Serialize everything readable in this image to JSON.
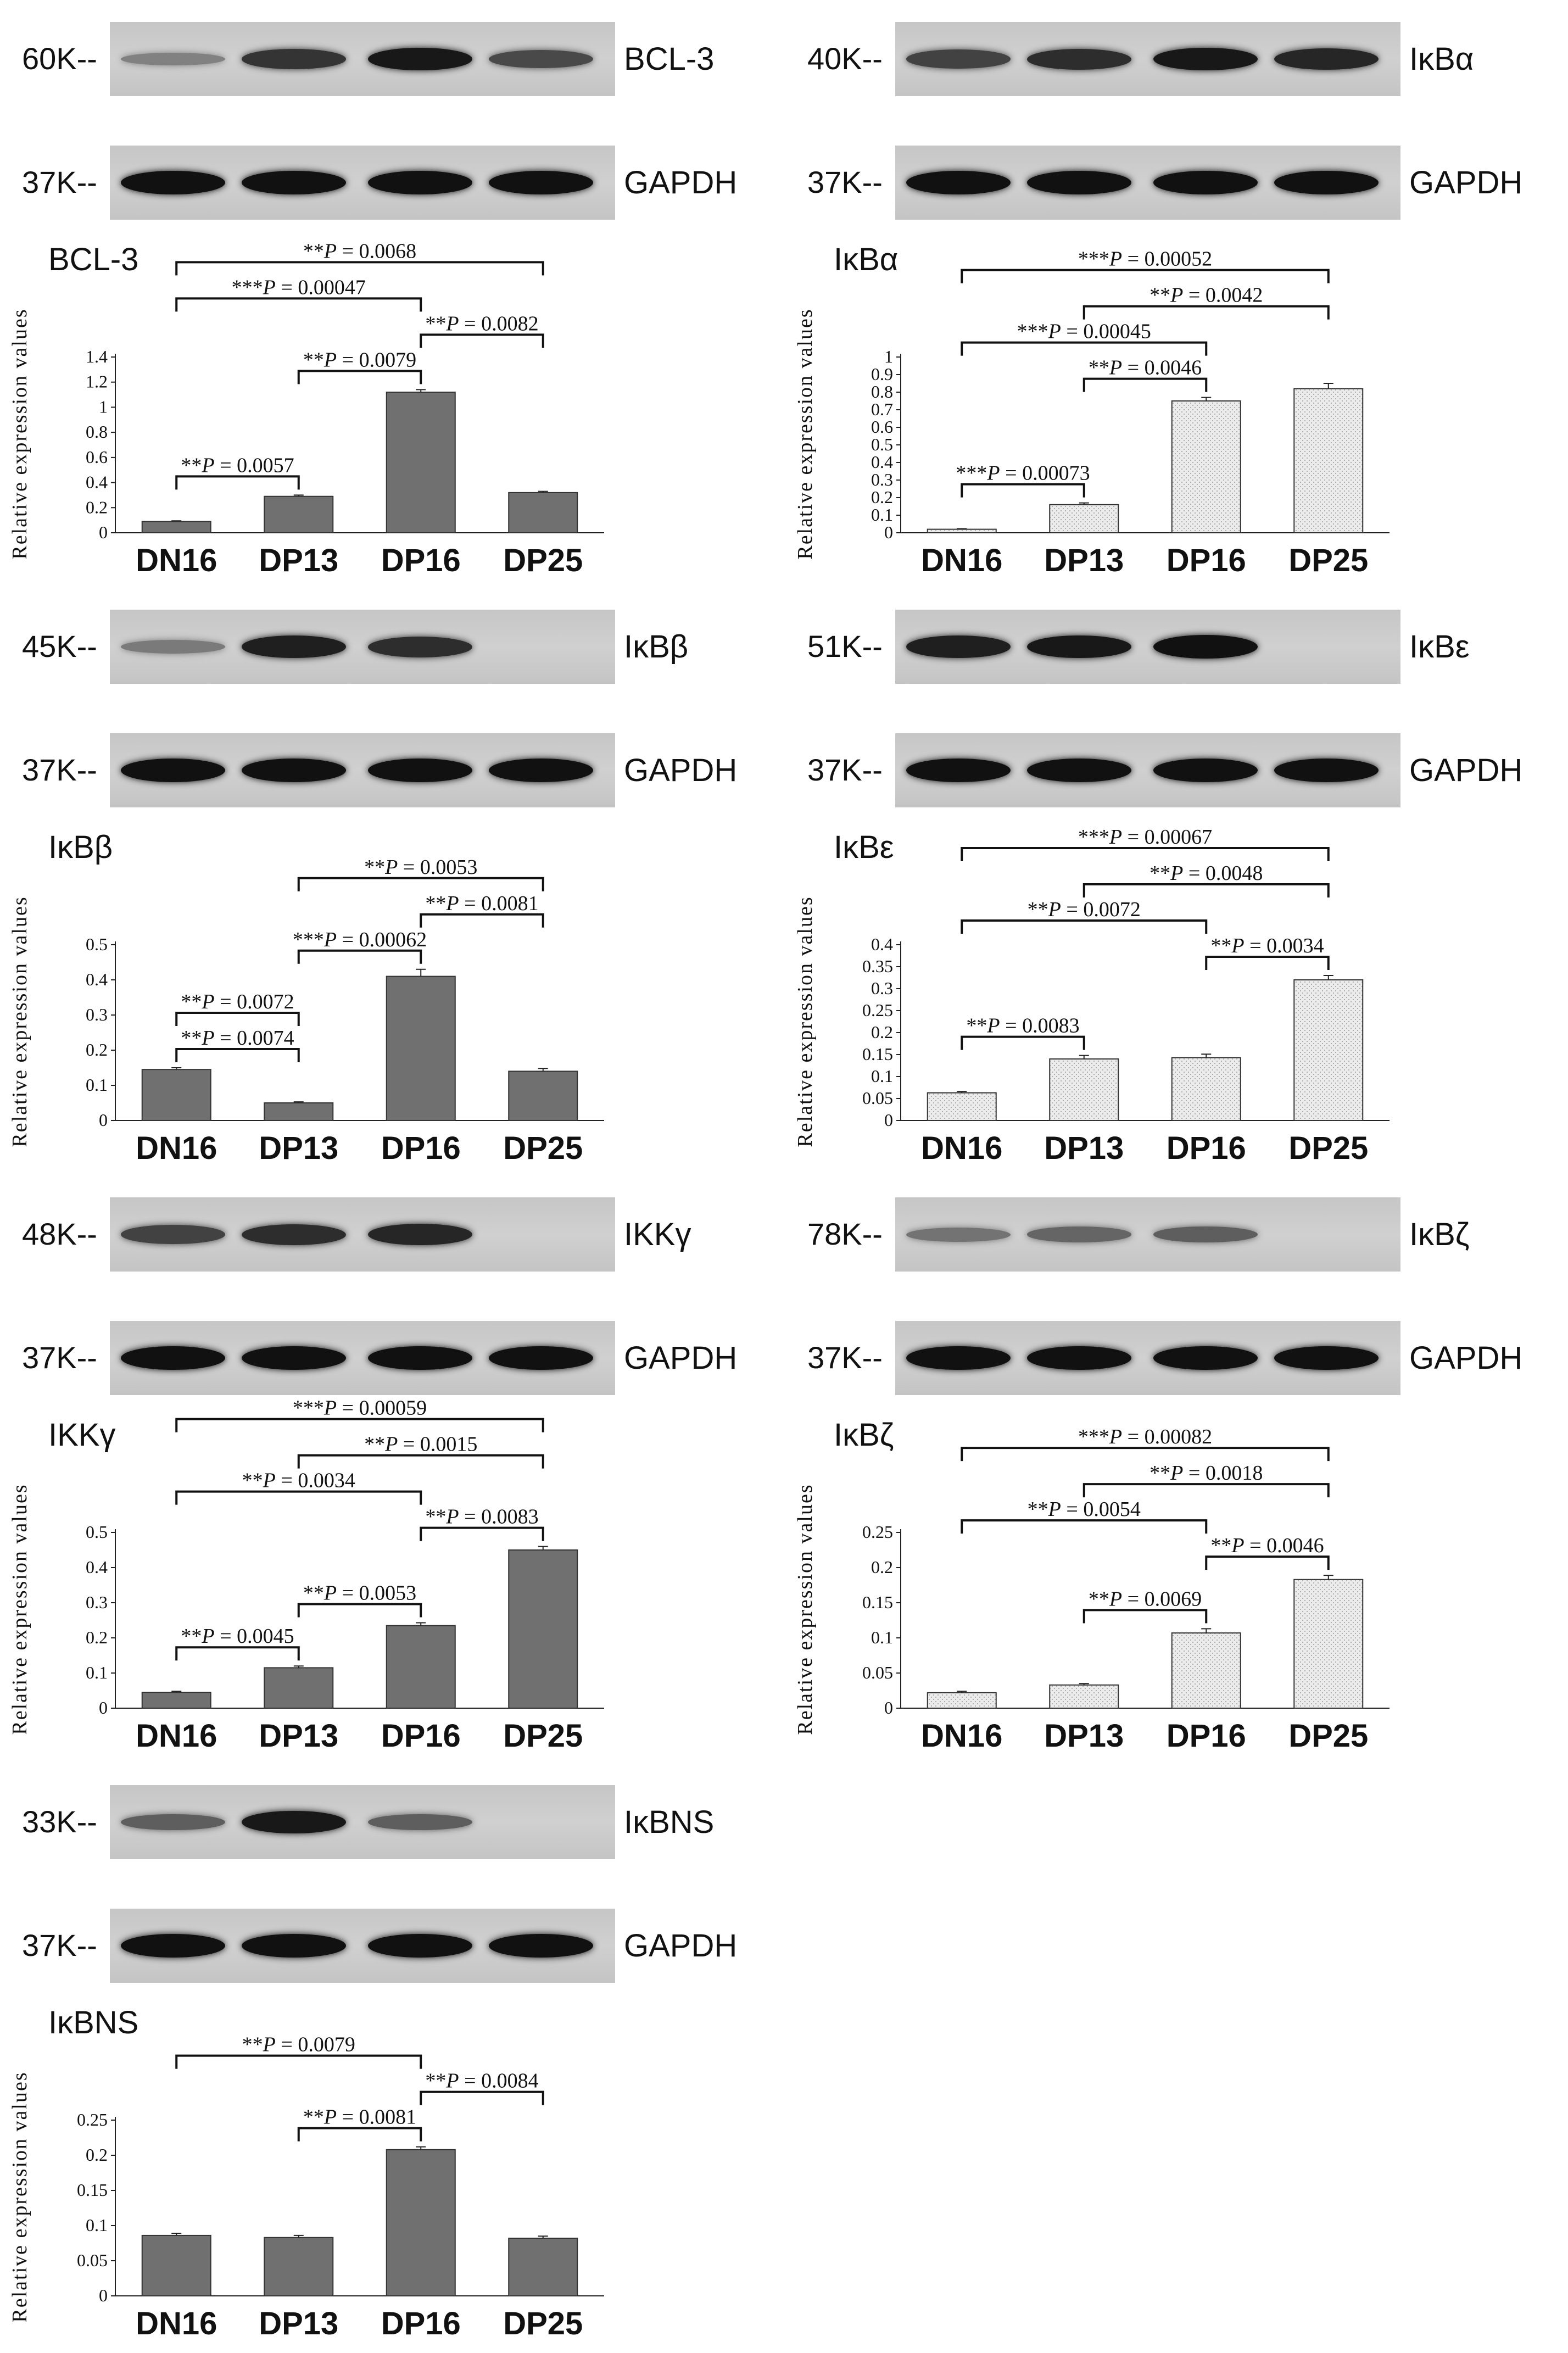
{
  "categories": [
    "DN16",
    "DP13",
    "DP16",
    "DP25"
  ],
  "ylabel": "Relative expression values",
  "panels": [
    {
      "id": "bcl3",
      "blot": {
        "mw": "60K--",
        "label": "BCL-3",
        "intensity": [
          0.55,
          0.15,
          0.7,
          0.9,
          0.55
        ]
      },
      "gapdh": {
        "mw": "37K--",
        "label": "GAPDH"
      },
      "chart_data": {
        "type": "bar",
        "title": "BCL-3",
        "ylabel": "Relative expression values",
        "categories": [
          "DN16",
          "DP13",
          "DP16",
          "DP25"
        ],
        "values": [
          0.09,
          0.29,
          1.12,
          0.32
        ],
        "errors": [
          0.005,
          0.01,
          0.02,
          0.01
        ],
        "ylim": [
          0,
          1.4
        ],
        "yticks": [
          "0",
          "0.2",
          "0.4",
          "0.6",
          "0.8",
          "1",
          "1.2",
          "1.4"
        ],
        "ytick_values": [
          0,
          0.2,
          0.4,
          0.6,
          0.8,
          1,
          1.2,
          1.4
        ],
        "bar_color": "#707070",
        "bar_pattern": "solid",
        "significance": [
          {
            "stars": "**",
            "p": "0.0068",
            "from": 0,
            "to": 3
          },
          {
            "stars": "***",
            "p": "0.00047",
            "from": 0,
            "to": 2
          },
          {
            "stars": "**",
            "p": "0.0079",
            "from": 1,
            "to": 2
          },
          {
            "stars": "**",
            "p": "0.0082",
            "from": 2,
            "to": 3
          },
          {
            "stars": "**",
            "p": "0.0057",
            "from": 0,
            "to": 1
          }
        ]
      }
    },
    {
      "id": "ikba",
      "blot": {
        "mw": "40K--",
        "label": "IκBα",
        "intensity": [
          0.0,
          0.6,
          0.75,
          0.9,
          0.8
        ]
      },
      "gapdh": {
        "mw": "37K--",
        "label": "GAPDH"
      },
      "chart_data": {
        "type": "bar",
        "title": "IκBα",
        "ylabel": "Relative expression values",
        "categories": [
          "DN16",
          "DP13",
          "DP16",
          "DP25"
        ],
        "values": [
          0.02,
          0.16,
          0.75,
          0.82
        ],
        "errors": [
          0.003,
          0.01,
          0.02,
          0.03
        ],
        "ylim": [
          0,
          1
        ],
        "yticks": [
          "0",
          "0.1",
          "0.2",
          "0.3",
          "0.4",
          "0.5",
          "0.6",
          "0.7",
          "0.8",
          "0.9",
          "1"
        ],
        "ytick_values": [
          0,
          0.1,
          0.2,
          0.3,
          0.4,
          0.5,
          0.6,
          0.7,
          0.8,
          0.9,
          1
        ],
        "bar_color": "#e6e6e6",
        "bar_pattern": "dotted",
        "significance": [
          {
            "stars": "***",
            "p": "0.00052",
            "from": 0,
            "to": 3
          },
          {
            "stars": "**",
            "p": "0.0042",
            "from": 1,
            "to": 3
          },
          {
            "stars": "***",
            "p": "0.00045",
            "from": 0,
            "to": 2
          },
          {
            "stars": "**",
            "p": "0.0046",
            "from": 1,
            "to": 2
          },
          {
            "stars": "***",
            "p": "0.00073",
            "from": 0,
            "to": 1
          }
        ]
      }
    },
    {
      "id": "ikbb",
      "blot": {
        "mw": "45K--",
        "label": "IκBβ",
        "intensity": [
          0.7,
          0.2,
          0.85,
          0.75,
          0.0
        ]
      },
      "gapdh": {
        "mw": "37K--",
        "label": "GAPDH"
      },
      "chart_data": {
        "type": "bar",
        "title": "IκBβ",
        "ylabel": "Relative expression values",
        "categories": [
          "DN16",
          "DP13",
          "DP16",
          "DP25"
        ],
        "values": [
          0.145,
          0.05,
          0.41,
          0.14
        ],
        "errors": [
          0.005,
          0.003,
          0.02,
          0.008
        ],
        "ylim": [
          0,
          0.5
        ],
        "yticks": [
          "0",
          "0.1",
          "0.2",
          "0.3",
          "0.4",
          "0.5"
        ],
        "ytick_values": [
          0,
          0.1,
          0.2,
          0.3,
          0.4,
          0.5
        ],
        "bar_color": "#707070",
        "bar_pattern": "solid",
        "significance": [
          {
            "stars": "**",
            "p": "0.0053",
            "from": 1,
            "to": 3
          },
          {
            "stars": "**",
            "p": "0.0074",
            "from": 0,
            "to": 1
          },
          {
            "stars": "***",
            "p": "0.00062",
            "from": 1,
            "to": 2
          },
          {
            "stars": "**",
            "p": "0.0081",
            "from": 2,
            "to": 3
          },
          {
            "stars": "**",
            "p": "0.0072",
            "from": 0,
            "to": 1
          }
        ]
      }
    },
    {
      "id": "ikbe",
      "blot": {
        "mw": "51K--",
        "label": "IκBε",
        "intensity": [
          0.45,
          0.85,
          0.9,
          0.95,
          0.0
        ]
      },
      "gapdh": {
        "mw": "37K--",
        "label": "GAPDH"
      },
      "chart_data": {
        "type": "bar",
        "title": "IκBε",
        "ylabel": "Relative expression values",
        "categories": [
          "DN16",
          "DP13",
          "DP16",
          "DP25"
        ],
        "values": [
          0.063,
          0.14,
          0.143,
          0.32
        ],
        "errors": [
          0.003,
          0.008,
          0.008,
          0.01
        ],
        "ylim": [
          0,
          0.4
        ],
        "yticks": [
          "0",
          "0.05",
          "0.1",
          "0.15",
          "0.2",
          "0.25",
          "0.3",
          "0.35",
          "0.4"
        ],
        "ytick_values": [
          0,
          0.05,
          0.1,
          0.15,
          0.2,
          0.25,
          0.3,
          0.35,
          0.4
        ],
        "bar_color": "#e6e6e6",
        "bar_pattern": "dotted",
        "significance": [
          {
            "stars": "***",
            "p": "0.00067",
            "from": 0,
            "to": 3
          },
          {
            "stars": "**",
            "p": "0.0048",
            "from": 1,
            "to": 3
          },
          {
            "stars": "**",
            "p": "0.0034",
            "from": 2,
            "to": 3
          },
          {
            "stars": "**",
            "p": "0.0072",
            "from": 0,
            "to": 2
          },
          {
            "stars": "**",
            "p": "0.0083",
            "from": 0,
            "to": 1
          }
        ]
      }
    },
    {
      "id": "ikkg",
      "blot": {
        "mw": "48K--",
        "label": "IKKγ",
        "intensity": [
          0.2,
          0.6,
          0.75,
          0.8,
          0.0
        ]
      },
      "gapdh": {
        "mw": "37K--",
        "label": "GAPDH"
      },
      "chart_data": {
        "type": "bar",
        "title": "IKKγ",
        "ylabel": "Relative expression values",
        "categories": [
          "DN16",
          "DP13",
          "DP16",
          "DP25"
        ],
        "values": [
          0.045,
          0.115,
          0.235,
          0.45
        ],
        "errors": [
          0.003,
          0.005,
          0.008,
          0.01
        ],
        "ylim": [
          0,
          0.5
        ],
        "yticks": [
          "0",
          "0.1",
          "0.2",
          "0.3",
          "0.4",
          "0.5"
        ],
        "ytick_values": [
          0,
          0.1,
          0.2,
          0.3,
          0.4,
          0.5
        ],
        "bar_color": "#707070",
        "bar_pattern": "solid",
        "significance": [
          {
            "stars": "***",
            "p": "0.00059",
            "from": 0,
            "to": 3
          },
          {
            "stars": "**",
            "p": "0.0015",
            "from": 1,
            "to": 3
          },
          {
            "stars": "**",
            "p": "0.0083",
            "from": 2,
            "to": 3
          },
          {
            "stars": "**",
            "p": "0.0034",
            "from": 0,
            "to": 2
          },
          {
            "stars": "**",
            "p": "0.0053",
            "from": 1,
            "to": 2
          },
          {
            "stars": "**",
            "p": "0.0045",
            "from": 0,
            "to": 1
          }
        ]
      }
    },
    {
      "id": "ikbz",
      "blot": {
        "mw": "78K--",
        "label": "IκBζ",
        "intensity": [
          0.0,
          0.25,
          0.35,
          0.4,
          0.0
        ]
      },
      "gapdh": {
        "mw": "37K--",
        "label": "GAPDH"
      },
      "chart_data": {
        "type": "bar",
        "title": "IκBζ",
        "ylabel": "Relative expression values",
        "categories": [
          "DN16",
          "DP13",
          "DP16",
          "DP25"
        ],
        "values": [
          0.022,
          0.033,
          0.107,
          0.183
        ],
        "errors": [
          0.002,
          0.002,
          0.006,
          0.006
        ],
        "ylim": [
          0,
          0.25
        ],
        "yticks": [
          "0",
          "0.05",
          "0.1",
          "0.15",
          "0.2",
          "0.25"
        ],
        "ytick_values": [
          0,
          0.05,
          0.1,
          0.15,
          0.2,
          0.25
        ],
        "bar_color": "#e6e6e6",
        "bar_pattern": "dotted",
        "significance": [
          {
            "stars": "***",
            "p": "0.00082",
            "from": 0,
            "to": 3
          },
          {
            "stars": "**",
            "p": "0.0018",
            "from": 1,
            "to": 3
          },
          {
            "stars": "**",
            "p": "0.0046",
            "from": 2,
            "to": 3
          },
          {
            "stars": "**",
            "p": "0.0054",
            "from": 0,
            "to": 2
          },
          {
            "stars": "**",
            "p": "0.0069",
            "from": 1,
            "to": 2
          }
        ]
      }
    },
    {
      "id": "ikbns",
      "blot": {
        "mw": "33K--",
        "label": "IκBNS",
        "intensity": [
          0.6,
          0.4,
          0.9,
          0.4,
          0.0
        ]
      },
      "gapdh": {
        "mw": "37K--",
        "label": "GAPDH"
      },
      "chart_data": {
        "type": "bar",
        "title": "IκBNS",
        "ylabel": "Relative expression values",
        "categories": [
          "DN16",
          "DP13",
          "DP16",
          "DP25"
        ],
        "values": [
          0.086,
          0.083,
          0.208,
          0.082
        ],
        "errors": [
          0.003,
          0.003,
          0.004,
          0.003
        ],
        "ylim": [
          0,
          0.25
        ],
        "yticks": [
          "0",
          "0.05",
          "0.1",
          "0.15",
          "0.2",
          "0.25"
        ],
        "ytick_values": [
          0,
          0.05,
          0.1,
          0.15,
          0.2,
          0.25
        ],
        "bar_color": "#707070",
        "bar_pattern": "solid",
        "significance": [
          {
            "stars": "**",
            "p": "0.0084",
            "from": 2,
            "to": 3
          },
          {
            "stars": "**",
            "p": "0.0079",
            "from": 0,
            "to": 2
          },
          {
            "stars": "**",
            "p": "0.0081",
            "from": 1,
            "to": 2
          }
        ]
      }
    }
  ]
}
